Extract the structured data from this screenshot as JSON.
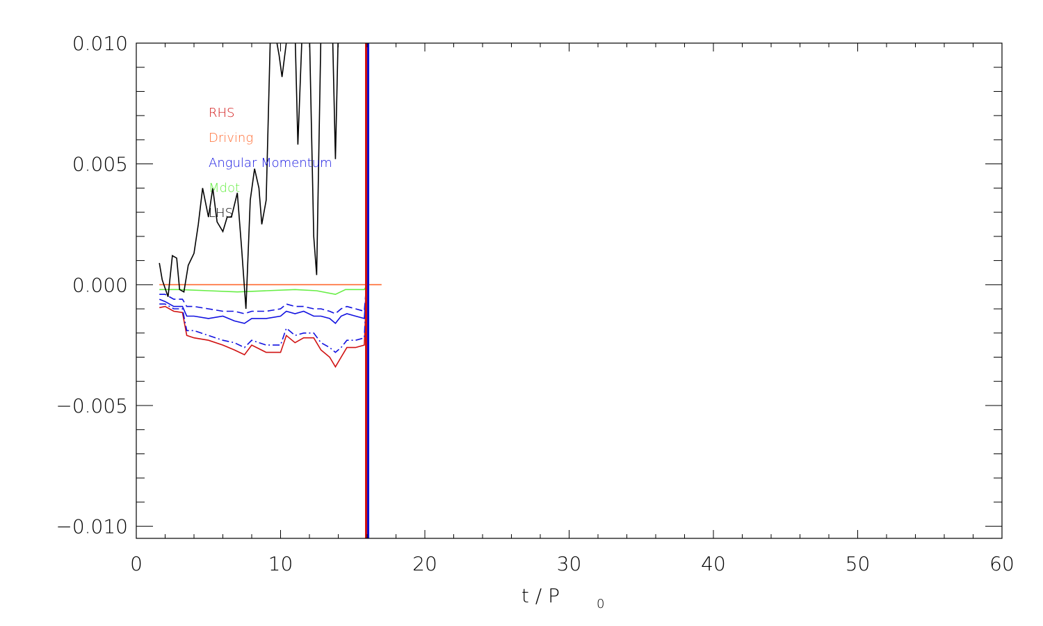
{
  "chart_data": {
    "type": "line",
    "title": "",
    "xlabel": "t / P",
    "xlabel_subscript": "0",
    "ylabel": "",
    "xlim": [
      0,
      60
    ],
    "ylim": [
      -0.0105,
      0.01
    ],
    "x_ticks": [
      0,
      10,
      20,
      30,
      40,
      50,
      60
    ],
    "x_tick_labels": [
      "0",
      "10",
      "20",
      "30",
      "40",
      "50",
      "60"
    ],
    "y_ticks": [
      0.01,
      0.005,
      0.0,
      -0.005,
      -0.01
    ],
    "y_tick_labels": [
      "0.010",
      "0.005",
      "0.000",
      "−0.005",
      "−0.010"
    ],
    "grid": false,
    "legend_position": "top-left",
    "vertical_marker": {
      "x": 16.0,
      "colors": [
        "#d01010",
        "#1010d0"
      ]
    },
    "series": [
      {
        "name": "RHS",
        "color": "#d01010",
        "dash": "solid",
        "x": [
          1.6,
          2.0,
          2.6,
          3.2,
          3.5,
          4.0,
          5.0,
          6.0,
          6.8,
          7.5,
          8.0,
          9.0,
          10.0,
          10.4,
          11.0,
          11.6,
          12.3,
          12.8,
          13.4,
          13.8,
          14.2,
          14.6,
          15.2,
          15.8,
          16.0
        ],
        "y": [
          -0.00095,
          -0.0009,
          -0.0011,
          -0.00115,
          -0.0021,
          -0.0022,
          -0.0023,
          -0.0025,
          -0.0027,
          -0.0029,
          -0.0025,
          -0.0028,
          -0.0028,
          -0.0021,
          -0.0024,
          -0.0022,
          -0.0022,
          -0.0027,
          -0.003,
          -0.0034,
          -0.003,
          -0.0026,
          -0.0026,
          -0.0025,
          0.0003
        ]
      },
      {
        "name": "Driving",
        "color": "#ff6a30",
        "dash": "solid",
        "x": [
          1.6,
          17.0
        ],
        "y": [
          0.0,
          0.0
        ]
      },
      {
        "name": "Angular Momentum",
        "color": "#1010e0",
        "dash": "solid",
        "x": [
          1.6,
          2.0,
          2.6,
          3.2,
          3.5,
          4.0,
          5.0,
          6.0,
          6.8,
          7.5,
          8.0,
          9.0,
          10.0,
          10.4,
          11.0,
          11.6,
          12.3,
          12.8,
          13.4,
          13.8,
          14.2,
          14.6,
          15.2,
          15.8,
          16.0
        ],
        "y": [
          -0.0006,
          -0.0007,
          -0.0009,
          -0.0009,
          -0.0013,
          -0.0013,
          -0.0014,
          -0.0013,
          -0.0015,
          -0.0016,
          -0.0014,
          -0.0014,
          -0.0013,
          -0.0011,
          -0.0012,
          -0.0011,
          -0.0013,
          -0.0013,
          -0.0014,
          -0.0016,
          -0.0013,
          -0.0012,
          -0.0013,
          -0.0014,
          0.0003
        ]
      },
      {
        "name": "",
        "color": "#1010e0",
        "dash": "dash",
        "x": [
          1.6,
          2.0,
          2.6,
          3.2,
          3.5,
          4.0,
          5.0,
          6.0,
          6.8,
          7.5,
          8.0,
          9.0,
          10.0,
          10.4,
          11.0,
          11.6,
          12.3,
          12.8,
          13.4,
          13.8,
          14.2,
          14.6,
          15.2,
          15.8,
          16.0
        ],
        "y": [
          -0.0004,
          -0.0004,
          -0.0006,
          -0.0006,
          -0.0009,
          -0.0009,
          -0.001,
          -0.0011,
          -0.0011,
          -0.0012,
          -0.0011,
          -0.0011,
          -0.001,
          -0.0008,
          -0.0009,
          -0.0009,
          -0.001,
          -0.001,
          -0.0011,
          -0.0012,
          -0.001,
          -0.0009,
          -0.001,
          -0.0011,
          0.0003
        ]
      },
      {
        "name": "",
        "color": "#1010e0",
        "dash": "dashdot",
        "x": [
          1.6,
          2.0,
          2.6,
          3.2,
          3.5,
          4.0,
          5.0,
          6.0,
          6.8,
          7.5,
          8.0,
          9.0,
          10.0,
          10.4,
          11.0,
          11.6,
          12.3,
          12.8,
          13.4,
          13.8,
          14.2,
          14.6,
          15.2,
          15.8,
          16.0
        ],
        "y": [
          -0.0008,
          -0.0008,
          -0.001,
          -0.001,
          -0.0019,
          -0.0019,
          -0.0021,
          -0.0023,
          -0.0024,
          -0.0026,
          -0.0023,
          -0.0025,
          -0.0025,
          -0.0018,
          -0.0021,
          -0.002,
          -0.002,
          -0.0024,
          -0.0026,
          -0.0028,
          -0.0026,
          -0.0023,
          -0.0023,
          -0.0022,
          0.0003
        ]
      },
      {
        "name": "Mdot",
        "color": "#66ee44",
        "dash": "solid",
        "x": [
          1.6,
          3.0,
          5.0,
          7.0,
          9.0,
          11.0,
          12.5,
          13.8,
          14.5,
          15.8,
          16.0
        ],
        "y": [
          -0.0002,
          -0.0002,
          -0.00025,
          -0.0003,
          -0.00025,
          -0.0002,
          -0.00025,
          -0.0004,
          -0.0002,
          -0.0002,
          0.0
        ]
      },
      {
        "name": "LHS",
        "color": "#000000",
        "dash": "solid",
        "x": [
          1.6,
          1.8,
          2.2,
          2.5,
          2.8,
          3.0,
          3.3,
          3.6,
          4.0,
          4.3,
          4.6,
          5.0,
          5.3,
          5.6,
          6.0,
          6.3,
          6.6,
          7.0,
          7.3,
          7.6,
          7.9,
          8.2,
          8.5,
          8.7,
          9.0,
          9.3,
          9.6,
          9.9,
          10.1,
          10.5,
          11.0,
          11.2,
          11.5,
          12.0,
          12.3,
          12.5,
          12.8,
          13.2,
          13.6,
          13.8,
          14.0,
          14.5,
          15.0,
          15.6,
          15.9,
          16.0
        ],
        "y": [
          0.0009,
          0.0002,
          -0.0005,
          0.0012,
          0.0011,
          -0.0002,
          -0.0003,
          0.0008,
          0.0013,
          0.0025,
          0.004,
          0.0028,
          0.004,
          0.0026,
          0.0022,
          0.0028,
          0.0028,
          0.0038,
          0.0015,
          -0.001,
          0.0035,
          0.0048,
          0.004,
          0.0025,
          0.0035,
          0.0105,
          0.0105,
          0.0095,
          0.0086,
          0.0105,
          0.0105,
          0.0058,
          0.0105,
          0.0105,
          0.002,
          0.0004,
          0.0105,
          0.0105,
          0.0105,
          0.0052,
          0.0105,
          0.0105,
          0.0105,
          0.0105,
          0.0105,
          0.0105
        ]
      }
    ]
  }
}
